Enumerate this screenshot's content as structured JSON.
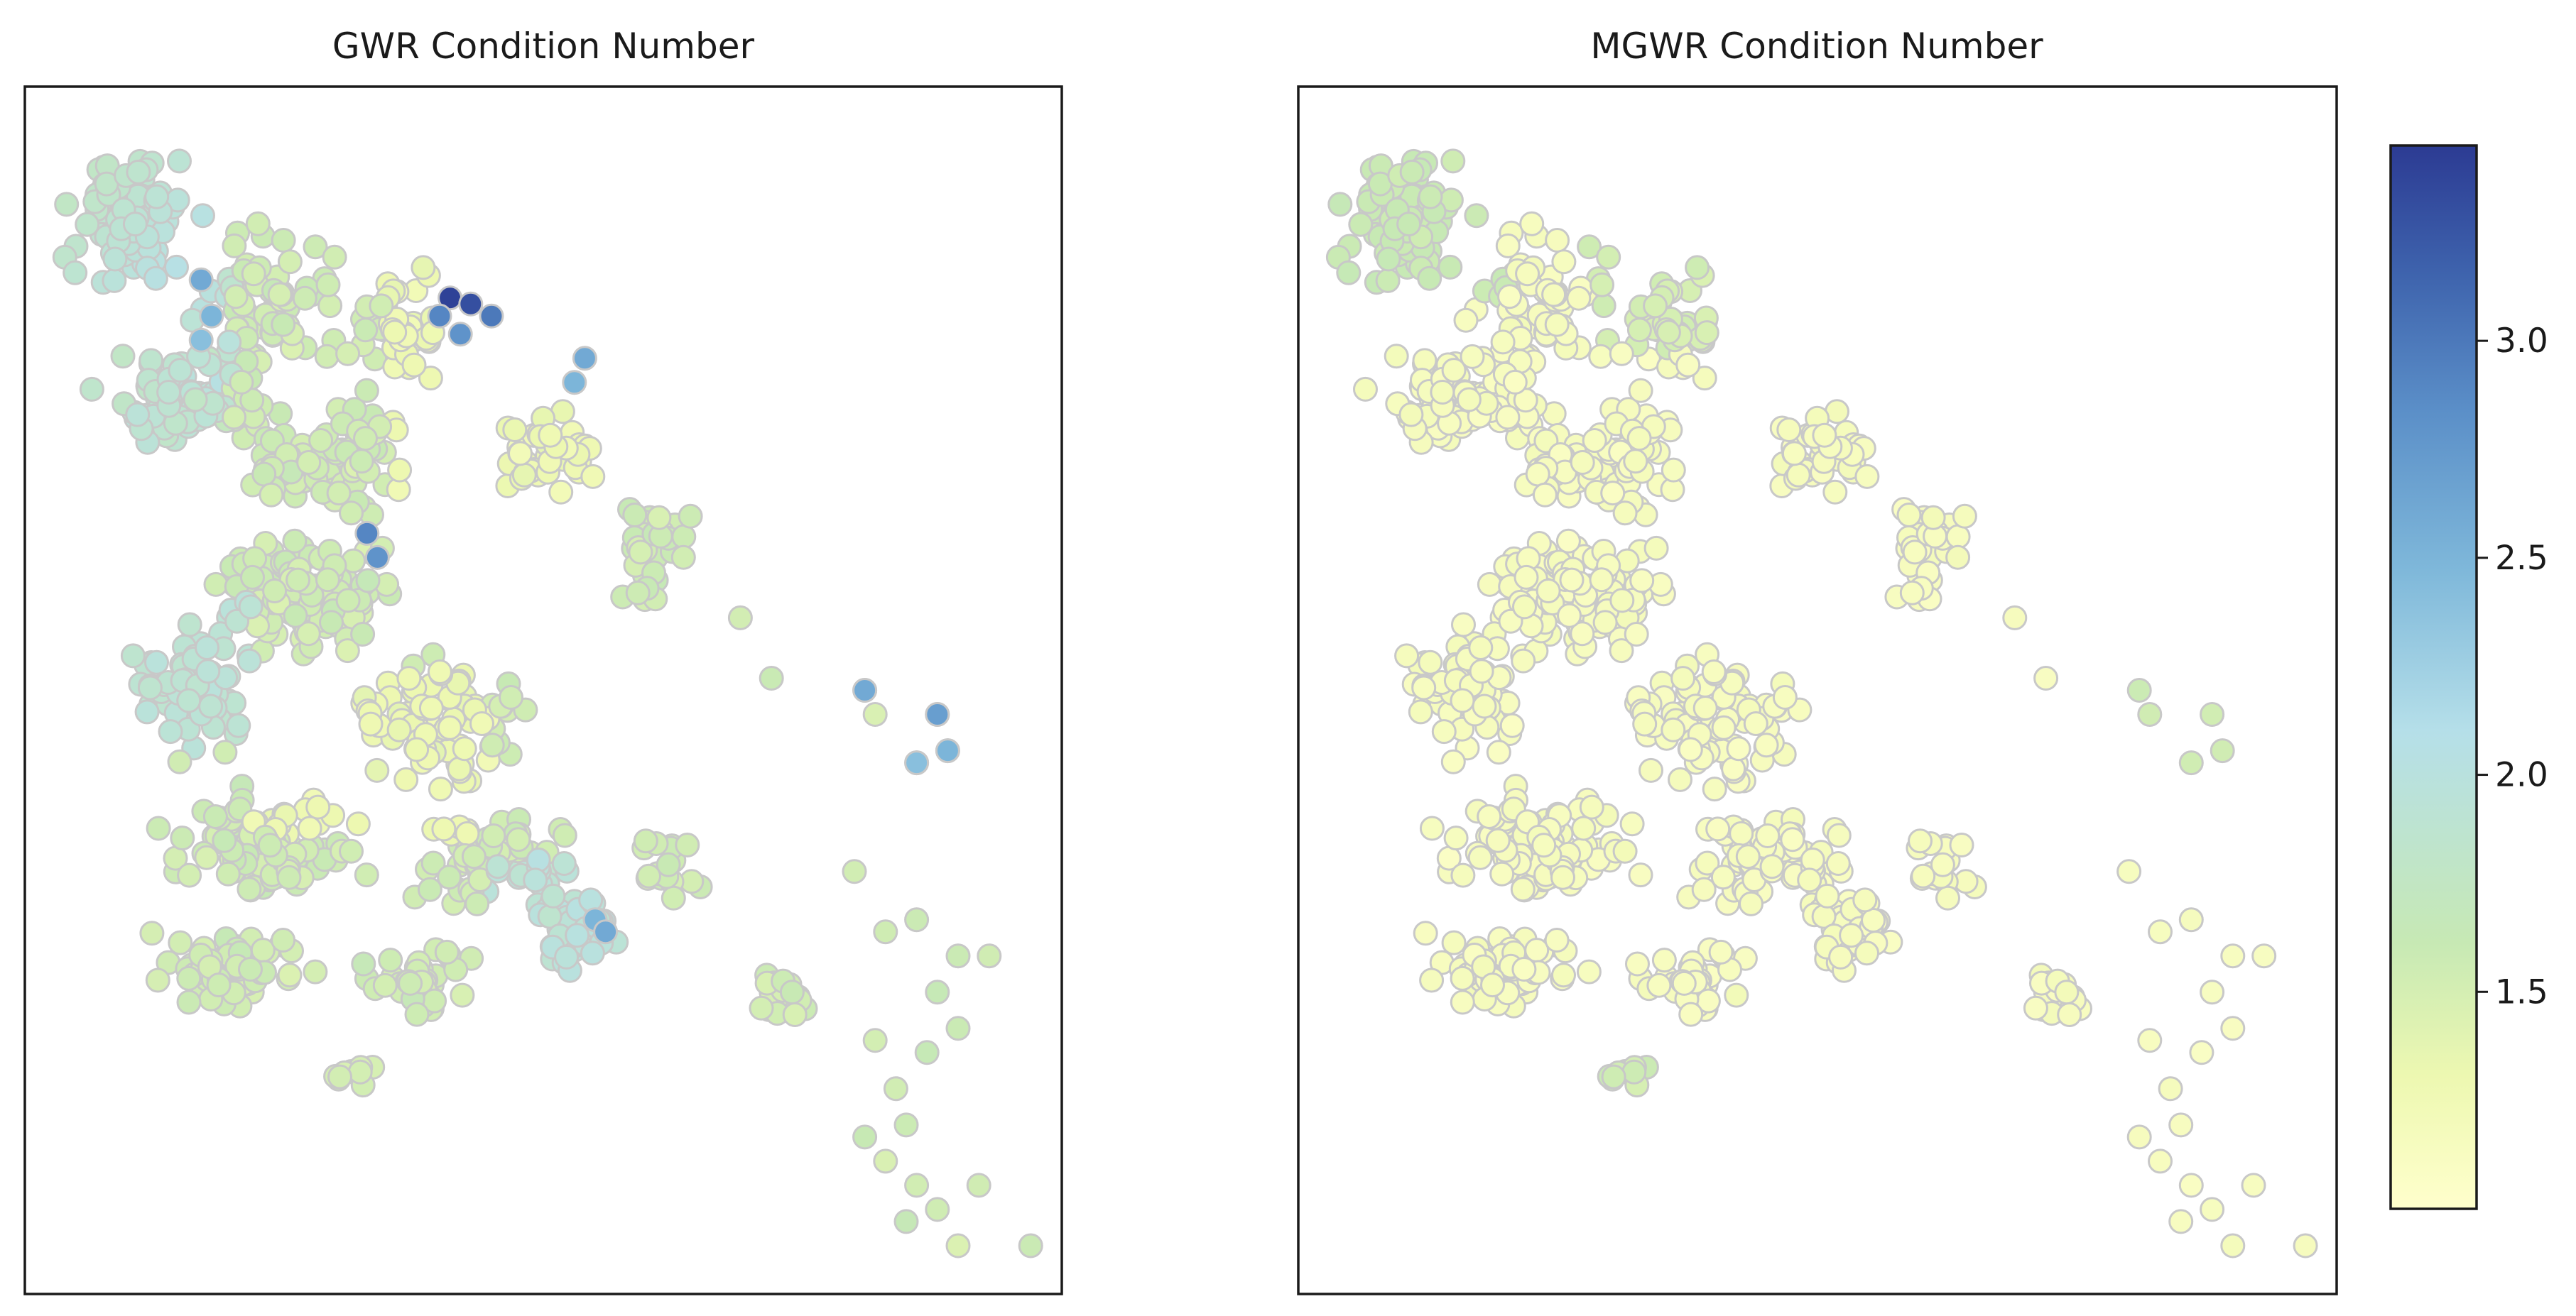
{
  "chart_data": {
    "type": "scatter",
    "panels": [
      {
        "title": "GWR Condition Number"
      },
      {
        "title": "MGWR Condition Number"
      }
    ],
    "colorbar": {
      "colormap": "YlGnBu",
      "range": [
        1.0,
        3.45
      ],
      "ticks": [
        1.5,
        2.0,
        2.5,
        3.0
      ],
      "tick_labels": [
        "1.5",
        "2.0",
        "2.5",
        "3.0"
      ]
    },
    "grid": false,
    "axis_ticks": false,
    "colors": {
      "low": "#ffffd0",
      "mid": "#b7dfe8",
      "high": "#2c3b93",
      "point_edge": "#c8c8c8"
    }
  }
}
